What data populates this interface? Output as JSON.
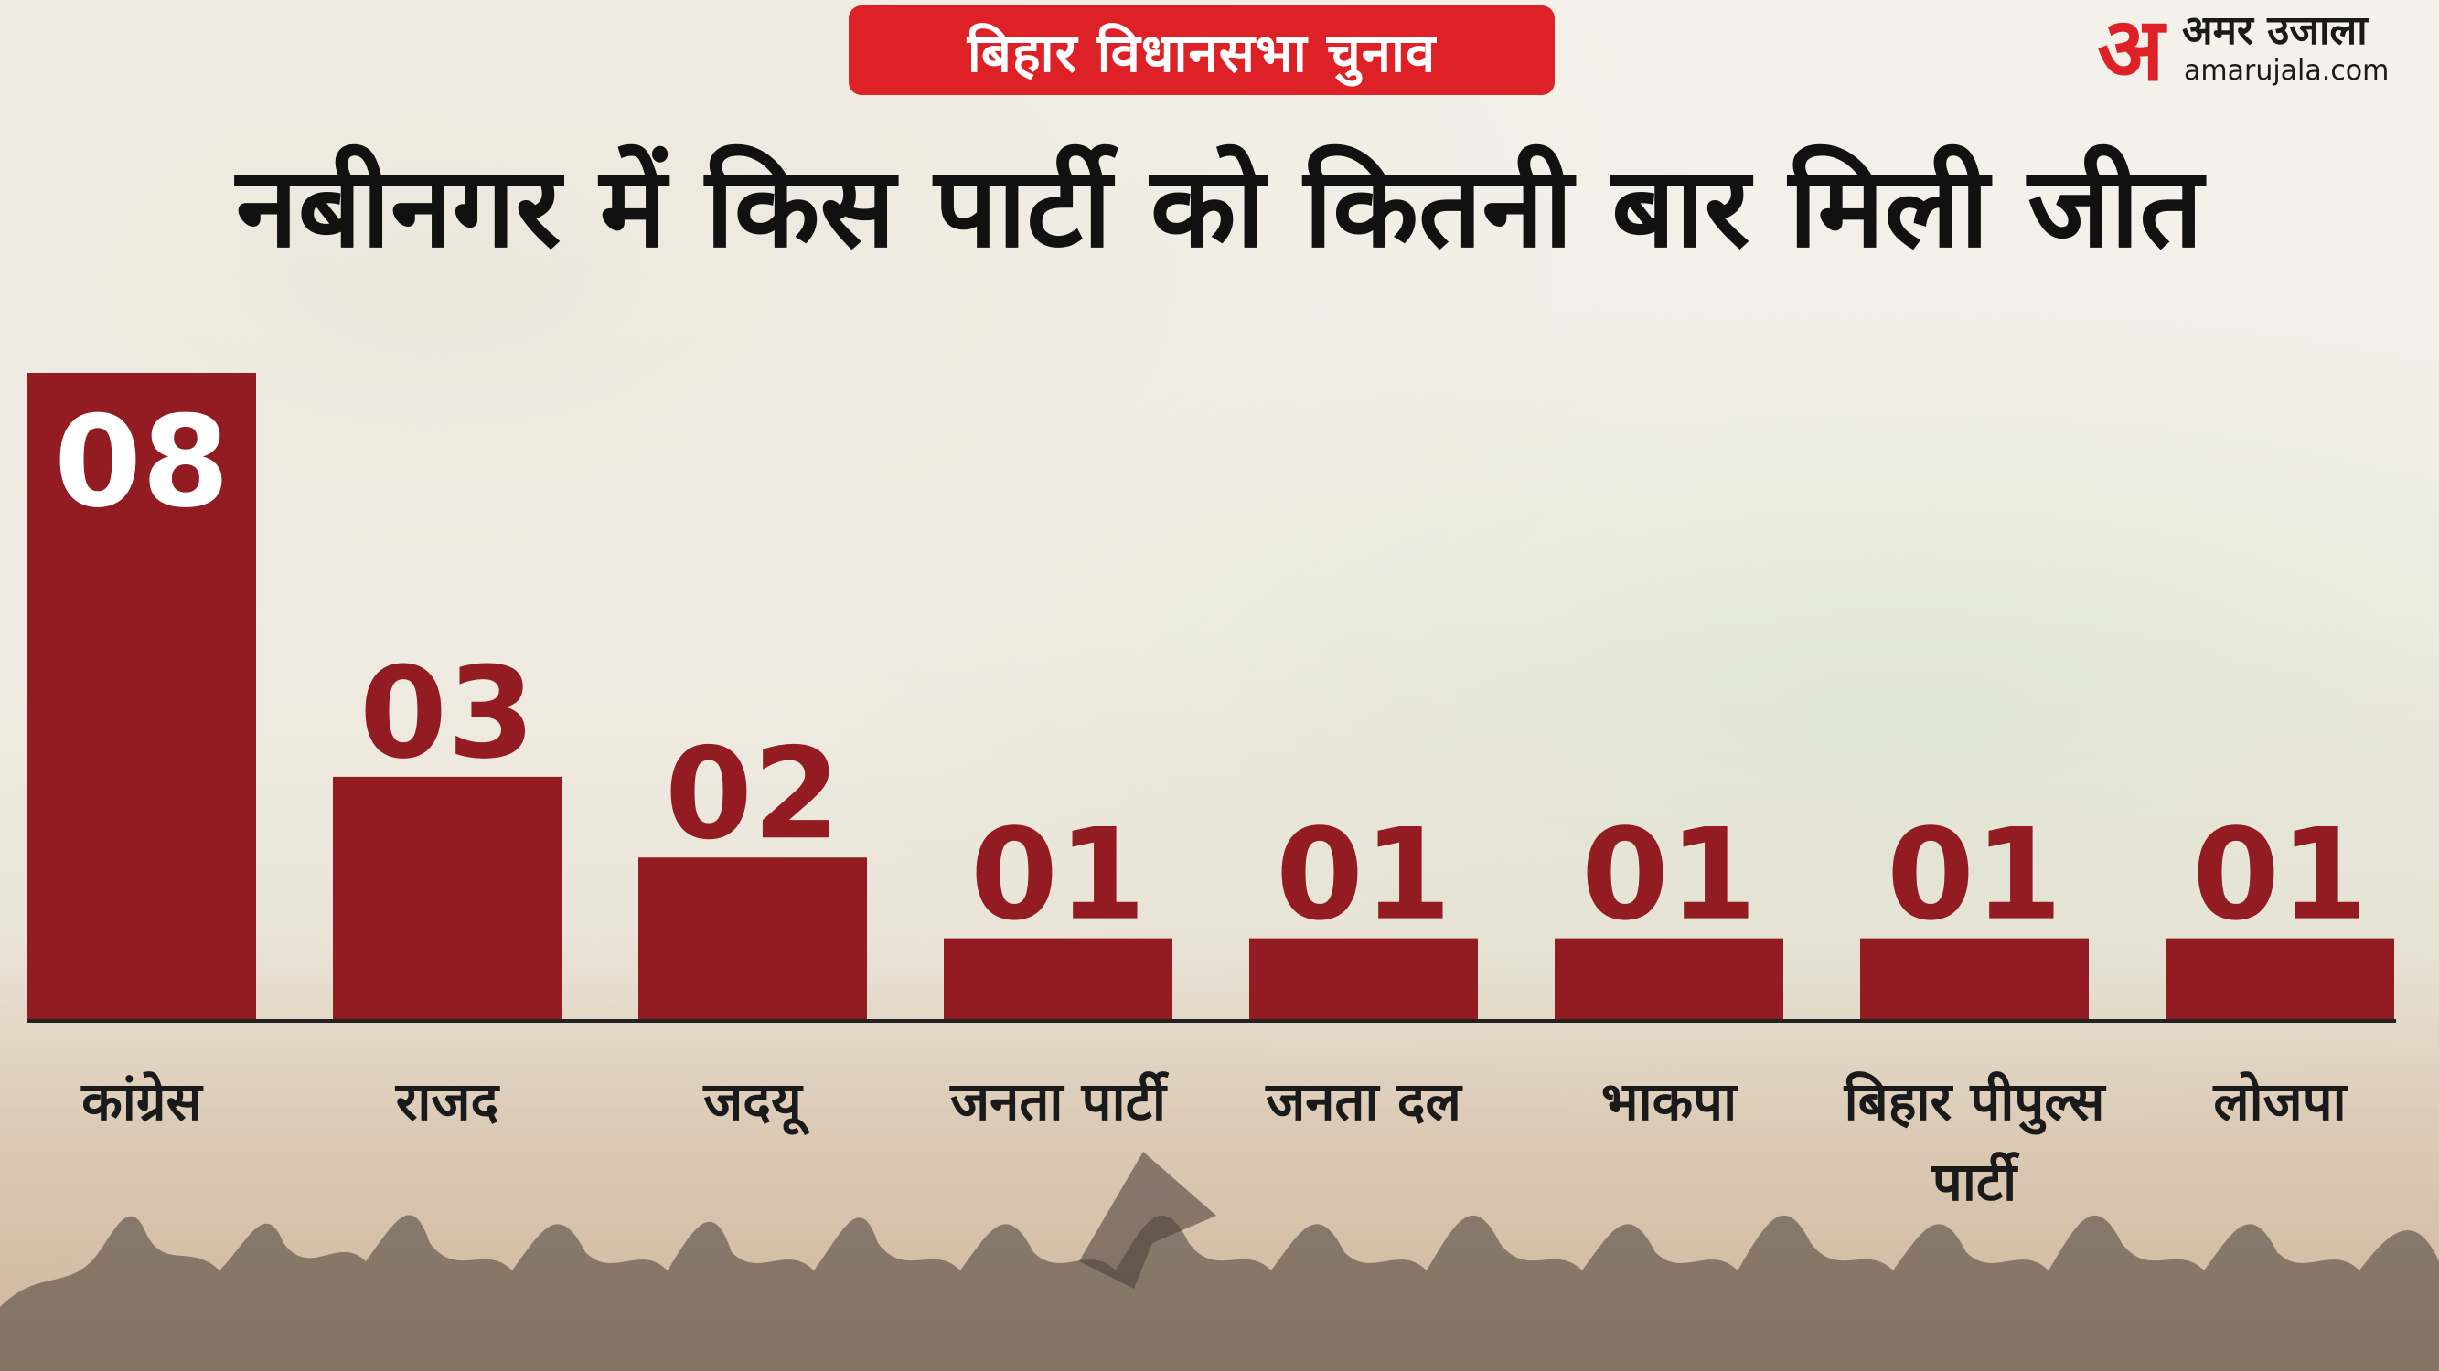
{
  "header": {
    "badge": "बिहार विधानसभा चुनाव",
    "title": "नबीनगर में किस पार्टी को कितनी बार मिली जीत"
  },
  "logo": {
    "mark": "अ",
    "name_hindi": "अमर उजाला",
    "url": "amarujala.com"
  },
  "colors": {
    "bar": "#921c21",
    "badge": "#dd2127",
    "bar_label_inside": "#ffffff",
    "bar_label_outside": "#921c21",
    "axis": "#222222"
  },
  "chart_data": {
    "type": "bar",
    "title": "नबीनगर में किस पार्टी को कितनी बार मिली जीत",
    "categories": [
      "कांग्रेस",
      "राजद",
      "जदयू",
      "जनता पार्टी",
      "जनता दल",
      "भाकपा",
      "बिहार पीपुल्स पार्टी",
      "लोजपा"
    ],
    "values": [
      8,
      3,
      2,
      1,
      1,
      1,
      1,
      1
    ],
    "value_labels": [
      "08",
      "03",
      "02",
      "01",
      "01",
      "01",
      "01",
      "01"
    ],
    "ylim": [
      0,
      8
    ],
    "grid": false,
    "legend": "none"
  }
}
